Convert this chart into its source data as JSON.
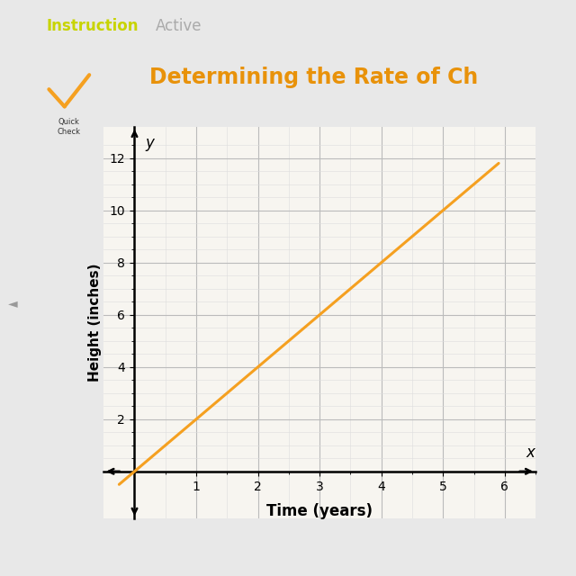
{
  "header_color": "#2B2B2B",
  "header_text1": "Instruction",
  "header_text2": "Active",
  "header_text_color": "#C8D400",
  "panel_bg": "#FFFFFF",
  "outer_bg": "#E8E8E8",
  "title_text": "Determining the Rate of Ch",
  "title_color": "#E8920A",
  "xlabel": "Time (years)",
  "ylabel": "Height (inches)",
  "xlim": [
    -0.5,
    6.5
  ],
  "ylim": [
    -1.8,
    13.2
  ],
  "xticks": [
    1,
    2,
    3,
    4,
    5,
    6
  ],
  "yticks": [
    2,
    4,
    6,
    8,
    10,
    12
  ],
  "line_x0": -0.25,
  "line_y0": -0.5,
  "line_x1": 5.9,
  "line_y1": 11.8,
  "line_color": "#F5A020",
  "line_width": 2.2,
  "graph_bg": "#F7F5F0",
  "grid_major_color": "#BBBBBB",
  "grid_minor_color": "#DDDDDD",
  "axis_lw": 1.8,
  "icon_bg": "#3A3A8C",
  "icon_check_color": "#F5A020"
}
